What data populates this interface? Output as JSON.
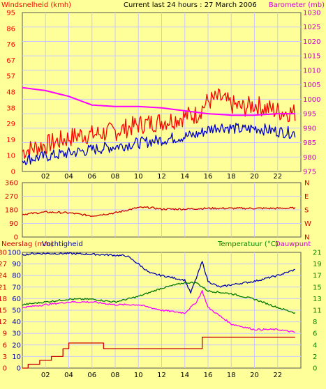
{
  "colors": {
    "background": "#ffff99",
    "grid": "#c8c8ff",
    "wind": "#ff0000",
    "gust": "#0000cc",
    "barometer": "#ff00ff",
    "winddir": "#cc0000",
    "humidity": "#0000aa",
    "temperature": "#007700",
    "dewpoint": "#ff00ff",
    "rain": "#cc0000",
    "label_temp": "#008800"
  },
  "chart_data": [
    {
      "type": "line",
      "title": "Current last 24 hours : 27 March 2006",
      "ylabel_left": "Windsnelheid (kmh)",
      "ylabel_right": "Barometer (mb)",
      "left_ticks": [
        "0",
        "10",
        "19",
        "29",
        "38",
        "48",
        "57",
        "67",
        "76",
        "86",
        "95"
      ],
      "right_ticks": [
        "975",
        "980",
        "985",
        "990",
        "995",
        "1000",
        "1005",
        "1010",
        "1015",
        "1020",
        "1025",
        "1030"
      ],
      "x_ticks": [
        "02",
        "04",
        "06",
        "08",
        "10",
        "12",
        "14",
        "16",
        "18",
        "20",
        "22"
      ],
      "ylim_left": [
        0,
        95
      ],
      "ylim_right": [
        975,
        1030
      ],
      "series": [
        {
          "key": "wind",
          "x": [
            0,
            1,
            2,
            3,
            4,
            5,
            6,
            7,
            8,
            9,
            10,
            11,
            12,
            13,
            14,
            15,
            16,
            17,
            18,
            19,
            20,
            21,
            22,
            23.5
          ],
          "values": [
            12,
            14,
            16,
            18,
            20,
            22,
            22,
            23,
            24,
            26,
            28,
            29,
            30,
            31,
            33,
            34,
            42,
            44,
            40,
            38,
            40,
            38,
            36,
            35
          ]
        },
        {
          "key": "gust",
          "x": [
            0,
            1,
            2,
            3,
            4,
            5,
            6,
            7,
            8,
            9,
            10,
            11,
            12,
            13,
            14,
            15,
            16,
            17,
            18,
            19,
            20,
            21,
            22,
            23.5
          ],
          "values": [
            7,
            8,
            9,
            10,
            11,
            12,
            13,
            14,
            15,
            16,
            17,
            18,
            19,
            20,
            21,
            22,
            25,
            27,
            26,
            25,
            26,
            25,
            24,
            23
          ]
        },
        {
          "key": "barometer",
          "axis": "right",
          "x": [
            0,
            2,
            4,
            6,
            8,
            10,
            12,
            14,
            16,
            18,
            20,
            22,
            23.5
          ],
          "values": [
            1004,
            1003,
            1001,
            998,
            997.5,
            997.5,
            997,
            996,
            995,
            994.5,
            994.5,
            995,
            995
          ]
        }
      ]
    },
    {
      "type": "line",
      "left_ticks": [
        "0",
        "90",
        "180",
        "270",
        "360"
      ],
      "right_ticks": [
        "N",
        "E",
        "S",
        "W",
        "N"
      ],
      "ylim": [
        0,
        360
      ],
      "series": [
        {
          "key": "winddir",
          "x": [
            0,
            2,
            4,
            6,
            8,
            10,
            11,
            12,
            14,
            16,
            18,
            20,
            22,
            23.5
          ],
          "values": [
            150,
            165,
            160,
            140,
            160,
            195,
            195,
            185,
            185,
            190,
            190,
            190,
            190,
            192
          ]
        }
      ]
    },
    {
      "type": "line",
      "ylabel_left_1": "Neerslag (mm)",
      "ylabel_left_2": "Vochtigheid",
      "ylabel_right_1": "Temperatuur (°C)",
      "ylabel_right_2": "Dauwpunt",
      "humidity_ticks": [
        "0",
        "10",
        "20",
        "30",
        "40",
        "50",
        "60",
        "70",
        "80",
        "90",
        "100"
      ],
      "rain_ticks": [
        "0",
        "3",
        "6",
        "9",
        "12",
        "15",
        "18",
        "21",
        "24",
        "27",
        "30"
      ],
      "temp_ticks": [
        "0",
        "2",
        "4",
        "6",
        "8",
        "11",
        "13",
        "15",
        "17",
        "19",
        "21"
      ],
      "ylim_humidity": [
        0,
        100
      ],
      "ylim_rain": [
        0,
        30
      ],
      "ylim_temp": [
        0,
        21
      ],
      "series": [
        {
          "key": "humidity",
          "x": [
            0,
            1,
            4,
            7,
            9,
            10,
            11,
            12,
            13,
            14,
            14.5,
            15,
            15.5,
            16,
            17,
            18,
            20,
            22,
            23.5
          ],
          "values": [
            98,
            99,
            99,
            98,
            97,
            90,
            82,
            80,
            78,
            76,
            65,
            78,
            92,
            75,
            70,
            72,
            75,
            80,
            85
          ]
        },
        {
          "key": "temperature",
          "axis": "temp",
          "x": [
            0,
            2,
            4,
            6,
            8,
            10,
            12,
            14,
            15,
            16,
            18,
            20,
            22,
            23.5
          ],
          "values": [
            11.5,
            12,
            12.5,
            12.5,
            12,
            13,
            14.5,
            15.5,
            15.5,
            14,
            13.5,
            12.5,
            11,
            10
          ]
        },
        {
          "key": "dewpoint",
          "axis": "temp",
          "x": [
            0,
            2,
            4,
            6,
            8,
            10,
            12,
            14,
            15,
            15.5,
            16,
            18,
            20,
            22,
            23.5
          ],
          "values": [
            11,
            11.5,
            12,
            12,
            11.5,
            11.5,
            10.5,
            10,
            12,
            14,
            11,
            8,
            7,
            7,
            6.5
          ]
        },
        {
          "key": "rain",
          "axis": "rain",
          "step": true,
          "x": [
            0,
            0.5,
            1.5,
            2.5,
            3.5,
            4,
            6.9,
            7,
            15.4,
            15.5,
            23.5
          ],
          "values": [
            0,
            1,
            2,
            3,
            5,
            6.5,
            6.5,
            5,
            5,
            8,
            8
          ]
        }
      ]
    }
  ]
}
